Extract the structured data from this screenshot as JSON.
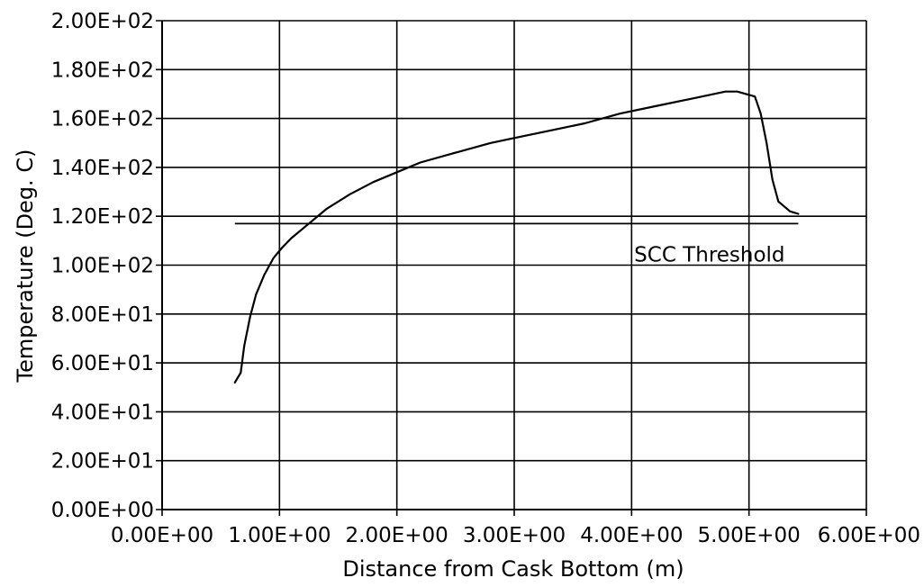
{
  "chart_data": {
    "type": "line",
    "title": "",
    "xlabel": "Distance from Cask Bottom (m)",
    "ylabel": "Temperature (Deg. C)",
    "xlim": [
      0,
      6
    ],
    "ylim": [
      0,
      200
    ],
    "x_ticks": [
      0,
      1,
      2,
      3,
      4,
      5,
      6
    ],
    "x_tick_labels": [
      "0.00E+00",
      "1.00E+00",
      "2.00E+00",
      "3.00E+00",
      "4.00E+00",
      "5.00E+00",
      "6.00E+00"
    ],
    "y_ticks": [
      0,
      20,
      40,
      60,
      80,
      100,
      120,
      140,
      160,
      180,
      200
    ],
    "y_tick_labels": [
      "0.00E+00",
      "2.00E+01",
      "4.00E+01",
      "6.00E+01",
      "8.00E+01",
      "1.00E+02",
      "1.20E+02",
      "1.40E+02",
      "1.60E+02",
      "1.80E+02",
      "2.00E+02"
    ],
    "grid": true,
    "series": [
      {
        "x": [
          0.62,
          0.67,
          0.7,
          0.75,
          0.8,
          0.87,
          0.95,
          1.02,
          1.1,
          1.2,
          1.4,
          1.6,
          1.8,
          2.0,
          2.2,
          2.5,
          2.8,
          3.0,
          3.3,
          3.6,
          3.9,
          4.2,
          4.5,
          4.7,
          4.8,
          4.9,
          5.05,
          5.1,
          5.15,
          5.2,
          5.25,
          5.3,
          5.35,
          5.42
        ],
        "y": [
          52,
          56,
          67,
          79,
          88,
          96,
          103,
          107,
          111,
          115,
          123,
          129,
          134,
          138,
          142,
          146,
          150,
          152,
          155,
          158,
          162,
          165,
          168,
          170,
          171,
          171,
          169,
          162,
          150,
          135,
          126,
          124,
          122,
          121
        ]
      }
    ],
    "reference_lines": [
      {
        "orientation": "horizontal",
        "y": 117,
        "x_range": [
          0.62,
          5.42
        ],
        "label": "SCC Threshold",
        "label_at": [
          3.5,
          106
        ]
      }
    ]
  }
}
